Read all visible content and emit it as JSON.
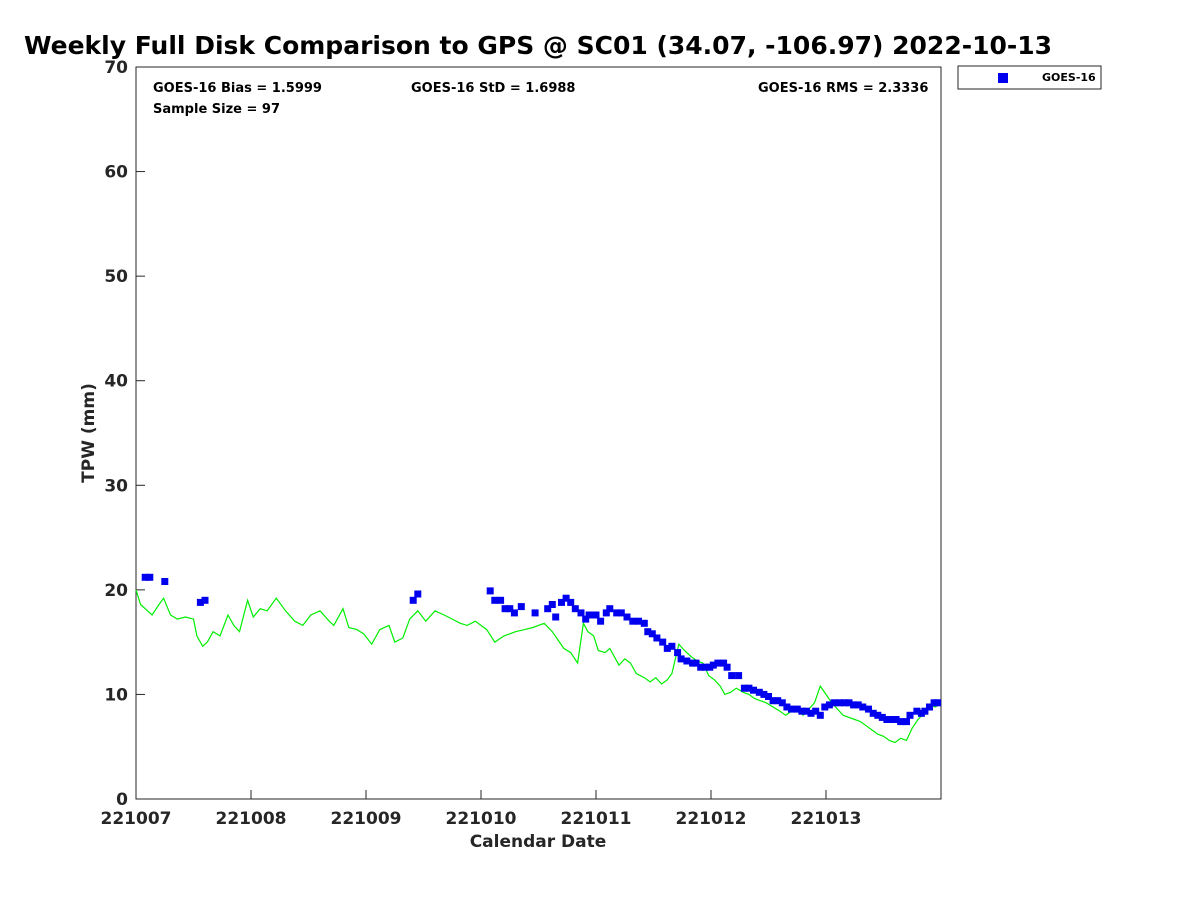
{
  "chart_data": {
    "type": "scatter",
    "title": "Weekly Full Disk Comparison to GPS @ SC01 (34.07, -106.97) 2022-10-13",
    "xlabel": "Calendar Date",
    "ylabel": "TPW (mm)",
    "xlim": [
      221007,
      221014
    ],
    "ylim": [
      0,
      70
    ],
    "x_ticks": [
      {
        "value": 221007,
        "label": "221007"
      },
      {
        "value": 221008,
        "label": "221008"
      },
      {
        "value": 221009,
        "label": "221009"
      },
      {
        "value": 221010,
        "label": "221010"
      },
      {
        "value": 221011,
        "label": "221011"
      },
      {
        "value": 221012,
        "label": "221012"
      },
      {
        "value": 221013,
        "label": "221013"
      }
    ],
    "y_ticks": [
      0,
      10,
      20,
      30,
      40,
      50,
      60,
      70
    ],
    "grid": false,
    "legend_position": "top-right",
    "stats": {
      "bias": "GOES-16 Bias = 1.5999",
      "std": "GOES-16 StD = 1.6988",
      "rms": "GOES-16 RMS = 2.3336",
      "sample": "Sample Size = 97"
    },
    "series": [
      {
        "name": "GOES-16",
        "marker": "square",
        "color": "#0000ee",
        "x": [
          221007.08,
          221007.12,
          221007.25,
          221007.56,
          221007.6,
          221009.41,
          221009.45,
          221010.08,
          221010.12,
          221010.17,
          221010.21,
          221010.25,
          221010.29,
          221010.35,
          221010.47,
          221010.58,
          221010.62,
          221010.65,
          221010.7,
          221010.74,
          221010.78,
          221010.82,
          221010.87,
          221010.91,
          221010.94,
          221011.0,
          221011.04,
          221011.09,
          221011.12,
          221011.18,
          221011.22,
          221011.27,
          221011.32,
          221011.37,
          221011.42,
          221011.45,
          221011.49,
          221011.53,
          221011.58,
          221011.62,
          221011.66,
          221011.71,
          221011.74,
          221011.79,
          221011.84,
          221011.87,
          221011.91,
          221011.95,
          221011.99,
          221012.02,
          221012.06,
          221012.11,
          221012.14,
          221012.18,
          221012.24,
          221012.29,
          221012.33,
          221012.37,
          221012.42,
          221012.46,
          221012.5,
          221012.54,
          221012.58,
          221012.62,
          221012.66,
          221012.7,
          221012.75,
          221012.79,
          221012.83,
          221012.87,
          221012.91,
          221012.95,
          221012.99,
          221013.03,
          221013.07,
          221013.12,
          221013.16,
          221013.2,
          221013.24,
          221013.28,
          221013.32,
          221013.37,
          221013.41,
          221013.45,
          221013.49,
          221013.53,
          221013.57,
          221013.61,
          221013.65,
          221013.7,
          221013.73,
          221013.79,
          221013.83,
          221013.86,
          221013.9,
          221013.94,
          221013.97
        ],
        "y": [
          21.2,
          21.2,
          20.8,
          18.8,
          19.0,
          19.0,
          19.6,
          19.9,
          19.0,
          19.0,
          18.2,
          18.2,
          17.8,
          18.4,
          17.8,
          18.2,
          18.6,
          17.4,
          18.8,
          19.2,
          18.8,
          18.2,
          17.8,
          17.2,
          17.6,
          17.6,
          17.0,
          17.8,
          18.2,
          17.8,
          17.8,
          17.4,
          17.0,
          17.0,
          16.8,
          16.0,
          15.8,
          15.4,
          15.0,
          14.4,
          14.6,
          14.0,
          13.4,
          13.2,
          13.0,
          13.0,
          12.6,
          12.6,
          12.6,
          12.8,
          13.0,
          13.0,
          12.6,
          11.8,
          11.8,
          10.6,
          10.6,
          10.4,
          10.2,
          10.0,
          9.8,
          9.4,
          9.4,
          9.2,
          8.8,
          8.6,
          8.6,
          8.4,
          8.4,
          8.2,
          8.4,
          8.0,
          8.8,
          9.0,
          9.2,
          9.2,
          9.2,
          9.2,
          9.0,
          9.0,
          8.8,
          8.6,
          8.2,
          8.0,
          7.8,
          7.6,
          7.6,
          7.6,
          7.4,
          7.4,
          8.0,
          8.4,
          8.2,
          8.4,
          8.8,
          9.2,
          9.2
        ]
      },
      {
        "marker": "line",
        "color": "#00ee00",
        "x": [
          221007.0,
          221007.04,
          221007.1,
          221007.14,
          221007.2,
          221007.24,
          221007.3,
          221007.36,
          221007.43,
          221007.5,
          221007.53,
          221007.58,
          221007.62,
          221007.67,
          221007.73,
          221007.8,
          221007.85,
          221007.9,
          221007.97,
          221008.02,
          221008.08,
          221008.14,
          221008.22,
          221008.3,
          221008.38,
          221008.45,
          221008.52,
          221008.6,
          221008.68,
          221008.72,
          221008.8,
          221008.85,
          221008.92,
          221008.98,
          221009.05,
          221009.12,
          221009.2,
          221009.25,
          221009.32,
          221009.38,
          221009.45,
          221009.52,
          221009.6,
          221009.68,
          221009.75,
          221009.82,
          221009.88,
          221009.95,
          221010.0,
          221010.05,
          221010.12,
          221010.2,
          221010.25,
          221010.3,
          221010.38,
          221010.45,
          221010.55,
          221010.62,
          221010.67,
          221010.72,
          221010.78,
          221010.84,
          221010.89,
          221010.93,
          221010.98,
          221011.02,
          221011.08,
          221011.12,
          221011.2,
          221011.25,
          221011.3,
          221011.35,
          221011.42,
          221011.47,
          221011.52,
          221011.57,
          221011.62,
          221011.66,
          221011.72,
          221011.77,
          221011.83,
          221011.88,
          221011.93,
          221011.98,
          221012.03,
          221012.08,
          221012.12,
          221012.17,
          221012.22,
          221012.28,
          221012.33,
          221012.38,
          221012.43,
          221012.48,
          221012.54,
          221012.6,
          221012.65,
          221012.7,
          221012.75,
          221012.8,
          221012.85,
          221012.9,
          221012.95,
          221013.0,
          221013.05,
          221013.1,
          221013.15,
          221013.2,
          221013.25,
          221013.3,
          221013.35,
          221013.4,
          221013.45,
          221013.5,
          221013.55,
          221013.6,
          221013.65,
          221013.7,
          221013.75,
          221013.8,
          221013.85,
          221013.9,
          221013.95,
          221013.98
        ],
        "y": [
          20.0,
          18.6,
          18.0,
          17.6,
          18.6,
          19.2,
          17.6,
          17.2,
          17.4,
          17.2,
          15.6,
          14.6,
          15.0,
          16.0,
          15.6,
          17.6,
          16.6,
          16.0,
          19.0,
          17.4,
          18.2,
          18.0,
          19.2,
          18.0,
          17.0,
          16.6,
          17.6,
          18.0,
          17.0,
          16.6,
          18.2,
          16.4,
          16.2,
          15.8,
          14.8,
          16.2,
          16.6,
          15.0,
          15.4,
          17.2,
          18.0,
          17.0,
          18.0,
          17.6,
          17.2,
          16.8,
          16.6,
          17.0,
          16.6,
          16.2,
          15.0,
          15.6,
          15.8,
          16.0,
          16.2,
          16.4,
          16.8,
          16.0,
          15.2,
          14.4,
          14.0,
          13.0,
          16.8,
          16.0,
          15.6,
          14.2,
          14.0,
          14.4,
          12.8,
          13.4,
          13.0,
          12.0,
          11.6,
          11.2,
          11.6,
          11.0,
          11.4,
          12.0,
          14.8,
          14.2,
          13.6,
          13.2,
          13.0,
          11.8,
          11.4,
          10.8,
          10.0,
          10.2,
          10.6,
          10.2,
          10.0,
          9.6,
          9.4,
          9.2,
          8.8,
          8.4,
          8.0,
          8.4,
          8.6,
          8.0,
          8.6,
          9.2,
          10.8,
          10.0,
          9.2,
          8.6,
          8.0,
          7.8,
          7.6,
          7.4,
          7.0,
          6.6,
          6.2,
          6.0,
          5.6,
          5.4,
          5.8,
          5.6,
          6.8,
          7.6,
          8.2,
          9.0,
          8.8,
          9.0
        ]
      }
    ]
  }
}
